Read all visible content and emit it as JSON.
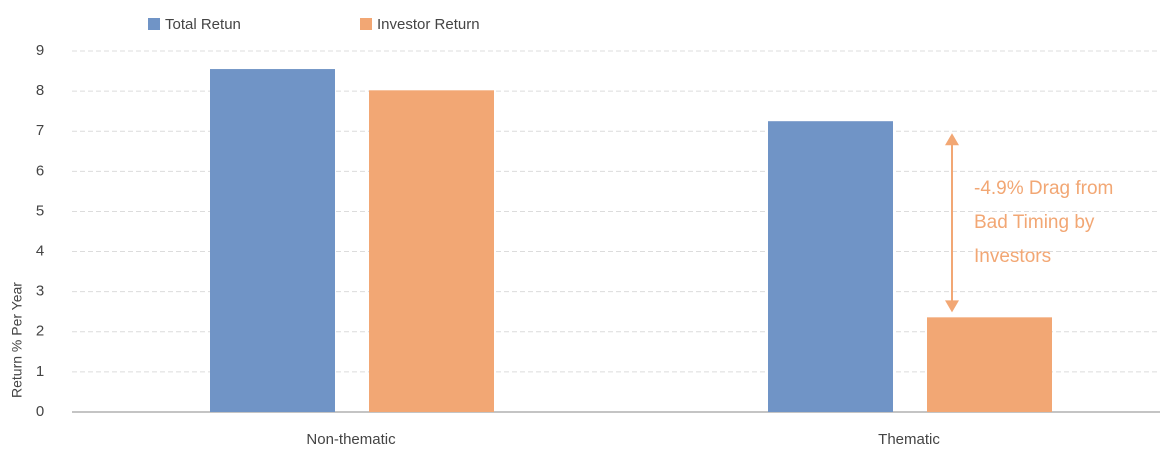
{
  "chart_data": {
    "type": "bar",
    "categories": [
      "Non-thematic",
      "Thematic"
    ],
    "series": [
      {
        "name": "Total Retun",
        "color": "#7094c6",
        "values": [
          8.55,
          7.25
        ]
      },
      {
        "name": "Investor Return",
        "color": "#f2a774",
        "values": [
          8.02,
          2.36
        ]
      }
    ],
    "ylabel": "Return % Per Year",
    "ylim": [
      0,
      9
    ],
    "yticks": [
      0,
      1,
      2,
      3,
      4,
      5,
      6,
      7,
      8,
      9
    ],
    "grid": true,
    "annotation": [
      "-4.9% Drag from",
      "Bad Timing by",
      "Investors"
    ],
    "annotation_color": "#f2a774",
    "legend": "top"
  }
}
